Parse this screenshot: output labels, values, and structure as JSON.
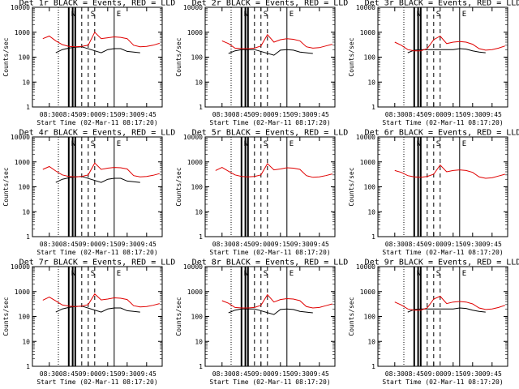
{
  "figure": {
    "xlabel": "Start Time (02-Mar-11 08:17:20)",
    "ylabel": "Counts/sec",
    "ytick_labels": [
      "1",
      "10",
      "100",
      "1000",
      "10000"
    ],
    "xtick_labels": [
      "08:30",
      "08:45",
      "09:00",
      "09:15",
      "09:30",
      "09:45"
    ],
    "colors": {
      "events": "#000000",
      "lld": "#e00000",
      "frame": "#000000"
    }
  },
  "chart_data": [
    {
      "type": "line",
      "title": "Det 1r BLACK = Events, RED = LLD",
      "x": [
        "08:20",
        "08:25",
        "08:30",
        "08:35",
        "08:40",
        "08:45",
        "08:50",
        "08:55",
        "09:00",
        "09:05",
        "09:10",
        "09:15",
        "09:20",
        "09:25",
        "09:30",
        "09:35",
        "09:40",
        "09:45",
        "09:50",
        "09:55"
      ],
      "series": [
        {
          "name": "Events",
          "values": [
            null,
            null,
            null,
            150,
            200,
            230,
            250,
            260,
            null,
            null,
            150,
            200,
            220,
            220,
            170,
            160,
            150,
            null,
            null,
            null
          ]
        },
        {
          "name": "LLD",
          "values": [
            null,
            550,
            700,
            450,
            320,
            270,
            260,
            270,
            300,
            1000,
            550,
            600,
            650,
            620,
            550,
            300,
            260,
            270,
            300,
            360
          ]
        }
      ],
      "markers": {
        "solid": [
          "08:45",
          "08:48",
          "08:50",
          "09:20"
        ],
        "dotted": [
          "08:37"
        ],
        "dashed": [
          "08:55",
          "09:00",
          "09:05"
        ],
        "labels": [
          "N",
          "S",
          "E"
        ]
      },
      "ylim": [
        1,
        10000
      ],
      "yscale": "log"
    },
    {
      "type": "line",
      "title": "Det 2r BLACK = Events, RED = LLD",
      "x": [
        "08:20",
        "08:25",
        "08:30",
        "08:35",
        "08:40",
        "08:45",
        "08:50",
        "08:55",
        "09:00",
        "09:05",
        "09:10",
        "09:15",
        "09:20",
        "09:25",
        "09:30",
        "09:35",
        "09:40",
        "09:45",
        "09:50",
        "09:55"
      ],
      "series": [
        {
          "name": "Events",
          "values": [
            null,
            null,
            null,
            140,
            180,
            200,
            200,
            200,
            null,
            null,
            120,
            190,
            200,
            190,
            160,
            150,
            140,
            null,
            null,
            null
          ]
        },
        {
          "name": "LLD",
          "values": [
            null,
            null,
            450,
            350,
            230,
            220,
            220,
            230,
            280,
            800,
            400,
            500,
            550,
            520,
            450,
            260,
            230,
            240,
            280,
            330
          ]
        }
      ],
      "markers": {
        "solid": [
          "08:45",
          "08:48",
          "08:50",
          "09:20"
        ],
        "dotted": [
          "08:37"
        ],
        "dashed": [
          "08:55",
          "09:00",
          "09:05"
        ],
        "labels": [
          "N",
          "S",
          "E"
        ]
      },
      "ylim": [
        1,
        10000
      ],
      "yscale": "log"
    },
    {
      "type": "line",
      "title": "Det 3r BLACK = Events, RED = LLD",
      "x": [
        "08:20",
        "08:25",
        "08:30",
        "08:35",
        "08:40",
        "08:45",
        "08:50",
        "08:55",
        "09:00",
        "09:05",
        "09:10",
        "09:15",
        "09:20",
        "09:25",
        "09:30",
        "09:35",
        "09:40",
        "09:45",
        "09:50",
        "09:55"
      ],
      "series": [
        {
          "name": "Events",
          "values": [
            null,
            null,
            null,
            null,
            150,
            190,
            200,
            200,
            null,
            null,
            null,
            200,
            220,
            210,
            180,
            160,
            150,
            null,
            null,
            null
          ]
        },
        {
          "name": "LLD",
          "values": [
            null,
            null,
            400,
            300,
            200,
            180,
            180,
            220,
            500,
            700,
            350,
            400,
            420,
            400,
            330,
            220,
            190,
            200,
            230,
            280
          ]
        }
      ],
      "markers": {
        "solid": [
          "08:45",
          "08:48",
          "08:50",
          "09:20"
        ],
        "dotted": [
          "08:37"
        ],
        "dashed": [
          "08:55",
          "09:00",
          "09:05"
        ],
        "labels": [
          "N",
          "S",
          "E"
        ]
      },
      "ylim": [
        1,
        10000
      ],
      "yscale": "log"
    },
    {
      "type": "line",
      "title": "Det 4r BLACK = Events, RED = LLD",
      "x": [
        "08:20",
        "08:25",
        "08:30",
        "08:35",
        "08:40",
        "08:45",
        "08:50",
        "08:55",
        "09:00",
        "09:05",
        "09:10",
        "09:15",
        "09:20",
        "09:25",
        "09:30",
        "09:35",
        "09:40",
        "09:45",
        "09:50",
        "09:55"
      ],
      "series": [
        {
          "name": "Events",
          "values": [
            null,
            null,
            null,
            150,
            200,
            230,
            250,
            260,
            null,
            null,
            150,
            200,
            220,
            220,
            170,
            160,
            150,
            null,
            null,
            null
          ]
        },
        {
          "name": "LLD",
          "values": [
            null,
            500,
            650,
            430,
            300,
            260,
            250,
            260,
            300,
            900,
            500,
            560,
            600,
            580,
            520,
            280,
            250,
            260,
            290,
            340
          ]
        }
      ],
      "markers": {
        "solid": [
          "08:45",
          "08:48",
          "08:50",
          "09:20"
        ],
        "dotted": [
          "08:37"
        ],
        "dashed": [
          "08:55",
          "09:00",
          "09:05"
        ],
        "labels": [
          "N",
          "S",
          "E"
        ]
      },
      "ylim": [
        1,
        10000
      ],
      "yscale": "log"
    },
    {
      "type": "line",
      "title": "Det 5r BLACK = Events, RED = LLD",
      "x": [
        "08:20",
        "08:25",
        "08:30",
        "08:35",
        "08:40",
        "08:45",
        "08:50",
        "08:55",
        "09:00",
        "09:05",
        "09:10",
        "09:15",
        "09:20",
        "09:25",
        "09:30",
        "09:35",
        "09:40",
        "09:45",
        "09:50",
        "09:55"
      ],
      "series": [
        {
          "name": "Events",
          "values": [
            null,
            null,
            null,
            null,
            null,
            null,
            null,
            null,
            null,
            null,
            null,
            null,
            null,
            null,
            null,
            null,
            null,
            null,
            null,
            null
          ]
        },
        {
          "name": "LLD",
          "values": [
            null,
            450,
            600,
            420,
            300,
            260,
            250,
            260,
            300,
            850,
            480,
            520,
            580,
            560,
            500,
            280,
            240,
            250,
            280,
            330
          ]
        }
      ],
      "markers": {
        "solid": [
          "08:45",
          "08:48",
          "08:50",
          "09:20"
        ],
        "dotted": [
          "08:37"
        ],
        "dashed": [
          "08:55",
          "09:00",
          "09:05"
        ],
        "labels": [
          "N",
          "S",
          "E"
        ]
      },
      "ylim": [
        1,
        10000
      ],
      "yscale": "log"
    },
    {
      "type": "line",
      "title": "Det 6r BLACK = Events, RED = LLD",
      "x": [
        "08:20",
        "08:25",
        "08:30",
        "08:35",
        "08:40",
        "08:45",
        "08:50",
        "08:55",
        "09:00",
        "09:05",
        "09:10",
        "09:15",
        "09:20",
        "09:25",
        "09:30",
        "09:35",
        "09:40",
        "09:45",
        "09:50",
        "09:55"
      ],
      "series": [
        {
          "name": "Events",
          "values": [
            null,
            null,
            null,
            null,
            null,
            null,
            null,
            null,
            null,
            null,
            null,
            null,
            null,
            null,
            null,
            null,
            null,
            null,
            null,
            null
          ]
        },
        {
          "name": "LLD",
          "values": [
            null,
            null,
            450,
            380,
            280,
            250,
            240,
            260,
            320,
            750,
            400,
            450,
            480,
            450,
            380,
            250,
            220,
            230,
            270,
            320
          ]
        }
      ],
      "markers": {
        "solid": [
          "08:45",
          "08:48",
          "08:50",
          "09:20"
        ],
        "dotted": [
          "08:37"
        ],
        "dashed": [
          "08:55",
          "09:00",
          "09:05"
        ],
        "labels": [
          "N",
          "S",
          "E"
        ]
      },
      "ylim": [
        1,
        10000
      ],
      "yscale": "log"
    },
    {
      "type": "line",
      "title": "Det 7r BLACK = Events, RED = LLD",
      "x": [
        "08:20",
        "08:25",
        "08:30",
        "08:35",
        "08:40",
        "08:45",
        "08:50",
        "08:55",
        "09:00",
        "09:05",
        "09:10",
        "09:15",
        "09:20",
        "09:25",
        "09:30",
        "09:35",
        "09:40",
        "09:45",
        "09:50",
        "09:55"
      ],
      "series": [
        {
          "name": "Events",
          "values": [
            null,
            null,
            null,
            150,
            200,
            230,
            250,
            260,
            null,
            null,
            150,
            200,
            220,
            220,
            170,
            160,
            150,
            null,
            null,
            null
          ]
        },
        {
          "name": "LLD",
          "values": [
            null,
            450,
            600,
            420,
            290,
            260,
            250,
            260,
            300,
            800,
            460,
            500,
            560,
            540,
            480,
            270,
            240,
            250,
            280,
            330
          ]
        }
      ],
      "markers": {
        "solid": [
          "08:45",
          "08:48",
          "08:50",
          "09:20"
        ],
        "dotted": [
          "08:37"
        ],
        "dashed": [
          "08:55",
          "09:00",
          "09:05"
        ],
        "labels": [
          "N",
          "S",
          "E"
        ]
      },
      "ylim": [
        1,
        10000
      ],
      "yscale": "log"
    },
    {
      "type": "line",
      "title": "Det 8r BLACK = Events, RED = LLD",
      "x": [
        "08:20",
        "08:25",
        "08:30",
        "08:35",
        "08:40",
        "08:45",
        "08:50",
        "08:55",
        "09:00",
        "09:05",
        "09:10",
        "09:15",
        "09:20",
        "09:25",
        "09:30",
        "09:35",
        "09:40",
        "09:45",
        "09:50",
        "09:55"
      ],
      "series": [
        {
          "name": "Events",
          "values": [
            null,
            null,
            null,
            140,
            180,
            200,
            200,
            200,
            null,
            null,
            120,
            190,
            200,
            190,
            160,
            150,
            140,
            null,
            null,
            null
          ]
        },
        {
          "name": "LLD",
          "values": [
            null,
            null,
            430,
            340,
            230,
            220,
            220,
            230,
            280,
            750,
            380,
            480,
            520,
            500,
            430,
            250,
            220,
            230,
            270,
            320
          ]
        }
      ],
      "markers": {
        "solid": [
          "08:45",
          "08:48",
          "08:50",
          "09:20"
        ],
        "dotted": [
          "08:37"
        ],
        "dashed": [
          "08:55",
          "09:00",
          "09:05"
        ],
        "labels": [
          "N",
          "S",
          "E"
        ]
      },
      "ylim": [
        1,
        10000
      ],
      "yscale": "log"
    },
    {
      "type": "line",
      "title": "Det 9r BLACK = Events, RED = LLD",
      "x": [
        "08:20",
        "08:25",
        "08:30",
        "08:35",
        "08:40",
        "08:45",
        "08:50",
        "08:55",
        "09:00",
        "09:05",
        "09:10",
        "09:15",
        "09:20",
        "09:25",
        "09:30",
        "09:35",
        "09:40",
        "09:45",
        "09:50",
        "09:55"
      ],
      "series": [
        {
          "name": "Events",
          "values": [
            null,
            null,
            null,
            null,
            150,
            190,
            200,
            200,
            null,
            null,
            null,
            200,
            220,
            210,
            180,
            160,
            150,
            null,
            null,
            null
          ]
        },
        {
          "name": "LLD",
          "values": [
            null,
            null,
            380,
            290,
            200,
            180,
            180,
            220,
            500,
            650,
            330,
            380,
            400,
            380,
            320,
            220,
            190,
            200,
            230,
            280
          ]
        }
      ],
      "markers": {
        "solid": [
          "08:45",
          "08:48",
          "08:50",
          "09:20"
        ],
        "dotted": [
          "08:37"
        ],
        "dashed": [
          "08:55",
          "09:00",
          "09:05"
        ],
        "labels": [
          "N",
          "S",
          "E"
        ]
      },
      "ylim": [
        1,
        10000
      ],
      "yscale": "log"
    }
  ]
}
